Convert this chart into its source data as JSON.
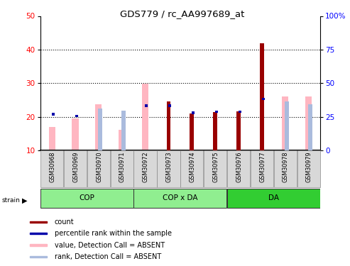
{
  "title": "GDS779 / rc_AA997689_at",
  "samples": [
    "GSM30968",
    "GSM30969",
    "GSM30970",
    "GSM30971",
    "GSM30972",
    "GSM30973",
    "GSM30974",
    "GSM30975",
    "GSM30976",
    "GSM30977",
    "GSM30978",
    "GSM30979"
  ],
  "group_configs": [
    {
      "name": "COP",
      "start": 0,
      "end": 3,
      "color": "#90EE90"
    },
    {
      "name": "COP x DA",
      "start": 4,
      "end": 7,
      "color": "#90EE90"
    },
    {
      "name": "DA",
      "start": 8,
      "end": 11,
      "color": "#32CD32"
    }
  ],
  "count_values": [
    null,
    null,
    null,
    null,
    null,
    24.5,
    21.0,
    21.3,
    21.5,
    41.8,
    null,
    null
  ],
  "percentile_values": [
    20.8,
    20.2,
    null,
    null,
    23.2,
    23.2,
    21.2,
    21.5,
    21.5,
    25.3,
    null,
    null
  ],
  "absent_value_bars": [
    17.0,
    19.5,
    23.8,
    16.0,
    29.8,
    null,
    null,
    null,
    null,
    null,
    26.0,
    26.0
  ],
  "absent_rank_bars": [
    null,
    null,
    22.5,
    21.8,
    null,
    null,
    null,
    null,
    null,
    null,
    24.5,
    23.8
  ],
  "ylim_left": [
    10,
    50
  ],
  "ylim_right": [
    0,
    100
  ],
  "yticks_left": [
    10,
    20,
    30,
    40,
    50
  ],
  "yticks_right": [
    0,
    25,
    50,
    75,
    100
  ],
  "color_count": "#990000",
  "color_percentile": "#0000AA",
  "color_absent_value": "#FFB6C1",
  "color_absent_rank": "#AABBDD",
  "background_color": "#ffffff",
  "plot_bg_color": "#ffffff",
  "label_bg_color": "#d8d8d8",
  "grid_color": "#000000"
}
